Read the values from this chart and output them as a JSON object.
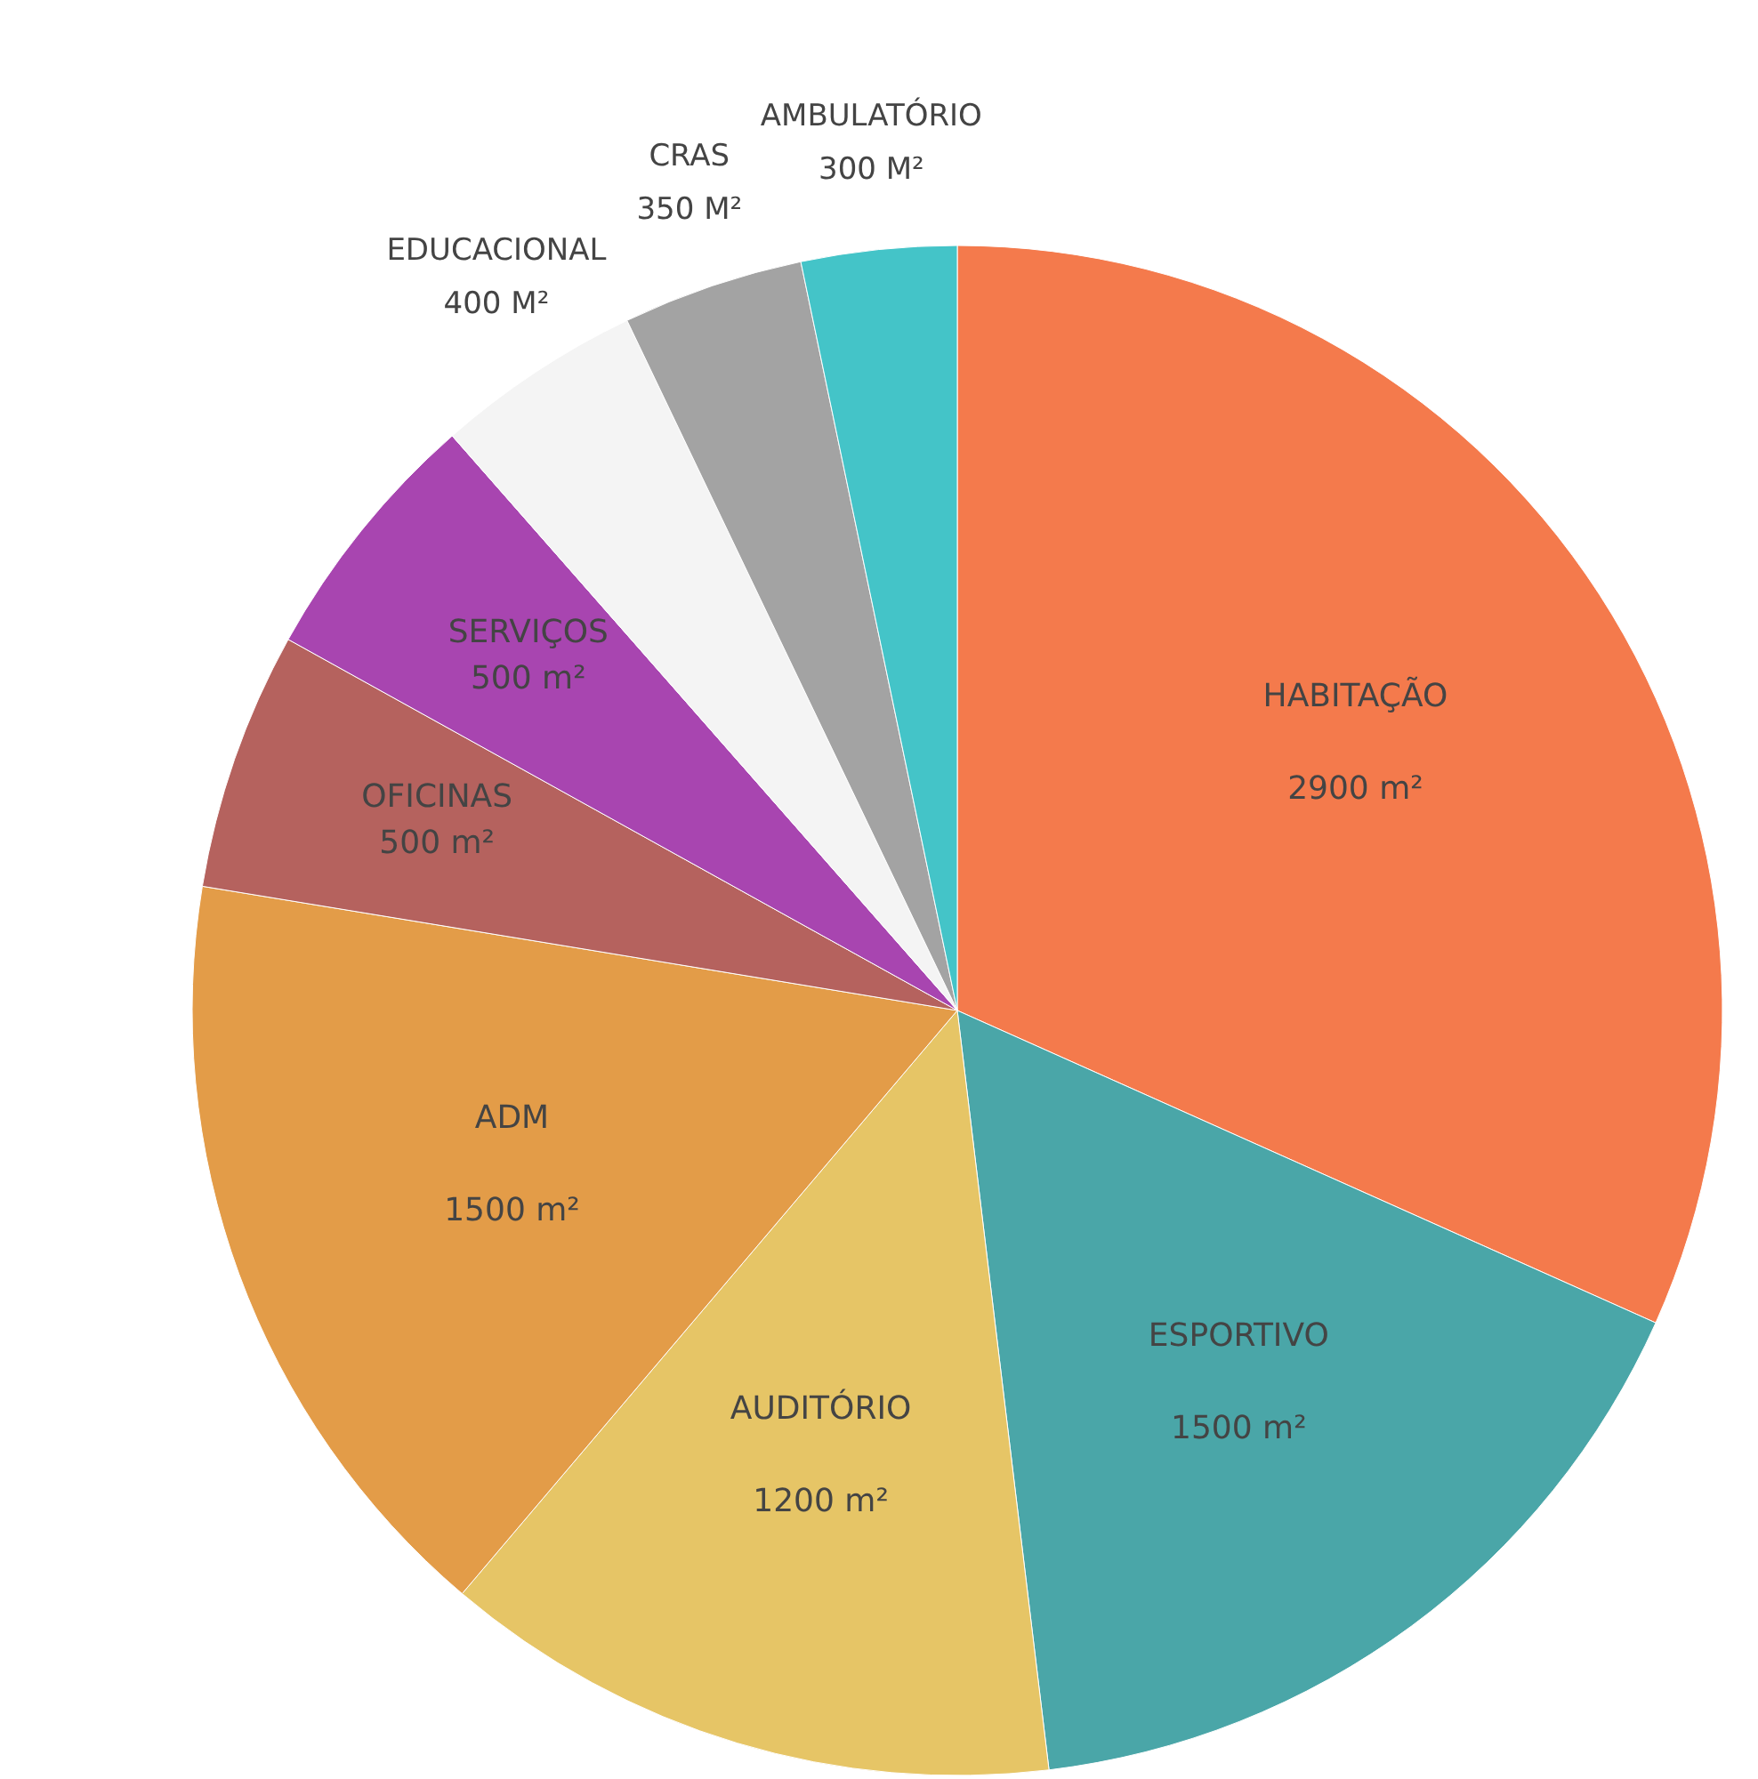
{
  "chart_data": {
    "type": "pie",
    "categories": [
      "HABITAÇÃO",
      "ESPORTIVO",
      "AUDITÓRIO",
      "ADM",
      "OFICINAS",
      "SERVIÇOS",
      "EDUCACIONAL",
      "CRAS",
      "AMBULATÓRIO"
    ],
    "values": [
      2900,
      1500,
      1200,
      1500,
      500,
      500,
      400,
      350,
      300
    ],
    "value_labels": [
      "2900 m²",
      "1500 m²",
      "1200 m²",
      "1500 m²",
      "500 m²",
      "500 m²",
      "400 M²",
      "350 M²",
      "300 M²"
    ],
    "colors": [
      "#f47a4c",
      "#4aa6a8",
      "#e6c566",
      "#e39c48",
      "#b5625e",
      "#a845b0",
      "#f4f4f4",
      "#a3a3a3",
      "#44c4c8"
    ]
  }
}
